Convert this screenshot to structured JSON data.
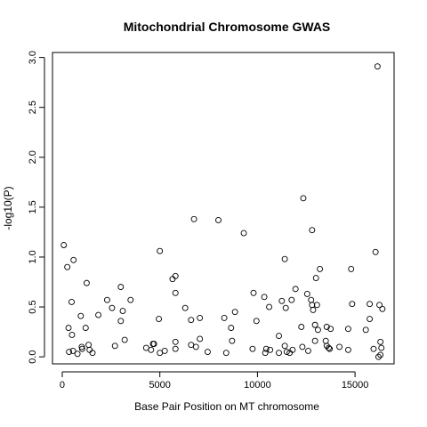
{
  "chart_data": {
    "type": "scatter",
    "title": "Mitochondrial Chromosome GWAS",
    "xlabel": "Base Pair Position on MT chromosome",
    "ylabel": "-log10(P)",
    "xlim": [
      -500,
      17000
    ],
    "ylim": [
      -0.07,
      3.05
    ],
    "x_ticks": [
      0,
      5000,
      10000,
      15000
    ],
    "x_tick_labels": [
      "0",
      "5000",
      "10000",
      "15000"
    ],
    "y_ticks": [
      0.0,
      0.5,
      1.0,
      1.5,
      2.0,
      2.5,
      3.0
    ],
    "y_tick_labels": [
      "0.0",
      "0.5",
      "1.0",
      "1.5",
      "2.0",
      "2.5",
      "3.0"
    ],
    "grid": false,
    "marker": "open-circle",
    "marker_color": "#000000",
    "points": [
      {
        "x": 80,
        "y": 1.12
      },
      {
        "x": 260,
        "y": 0.9
      },
      {
        "x": 320,
        "y": 0.29
      },
      {
        "x": 350,
        "y": 0.05
      },
      {
        "x": 480,
        "y": 0.55
      },
      {
        "x": 500,
        "y": 0.22
      },
      {
        "x": 550,
        "y": 0.06
      },
      {
        "x": 580,
        "y": 0.97
      },
      {
        "x": 780,
        "y": 0.03
      },
      {
        "x": 950,
        "y": 0.41
      },
      {
        "x": 1000,
        "y": 0.1
      },
      {
        "x": 1020,
        "y": 0.08
      },
      {
        "x": 1200,
        "y": 0.29
      },
      {
        "x": 1250,
        "y": 0.74
      },
      {
        "x": 1350,
        "y": 0.12
      },
      {
        "x": 1400,
        "y": 0.07
      },
      {
        "x": 1550,
        "y": 0.04
      },
      {
        "x": 1850,
        "y": 0.42
      },
      {
        "x": 2300,
        "y": 0.57
      },
      {
        "x": 2550,
        "y": 0.49
      },
      {
        "x": 2700,
        "y": 0.11
      },
      {
        "x": 3000,
        "y": 0.7
      },
      {
        "x": 3000,
        "y": 0.36
      },
      {
        "x": 3100,
        "y": 0.46
      },
      {
        "x": 3200,
        "y": 0.17
      },
      {
        "x": 3500,
        "y": 0.57
      },
      {
        "x": 4300,
        "y": 0.09
      },
      {
        "x": 4550,
        "y": 0.07
      },
      {
        "x": 4650,
        "y": 0.13
      },
      {
        "x": 4700,
        "y": 0.13
      },
      {
        "x": 4950,
        "y": 0.38
      },
      {
        "x": 5000,
        "y": 1.06
      },
      {
        "x": 5000,
        "y": 0.04
      },
      {
        "x": 5250,
        "y": 0.06
      },
      {
        "x": 5650,
        "y": 0.78
      },
      {
        "x": 5800,
        "y": 0.81
      },
      {
        "x": 5800,
        "y": 0.64
      },
      {
        "x": 5800,
        "y": 0.15
      },
      {
        "x": 5800,
        "y": 0.08
      },
      {
        "x": 6300,
        "y": 0.49
      },
      {
        "x": 6600,
        "y": 0.12
      },
      {
        "x": 6600,
        "y": 0.37
      },
      {
        "x": 6750,
        "y": 1.38
      },
      {
        "x": 6850,
        "y": 0.1
      },
      {
        "x": 7050,
        "y": 0.39
      },
      {
        "x": 7050,
        "y": 0.18
      },
      {
        "x": 7450,
        "y": 0.05
      },
      {
        "x": 8000,
        "y": 1.37
      },
      {
        "x": 8300,
        "y": 0.39
      },
      {
        "x": 8400,
        "y": 0.04
      },
      {
        "x": 8650,
        "y": 0.29
      },
      {
        "x": 8700,
        "y": 0.16
      },
      {
        "x": 8850,
        "y": 0.45
      },
      {
        "x": 9300,
        "y": 1.24
      },
      {
        "x": 9750,
        "y": 0.08
      },
      {
        "x": 9800,
        "y": 0.64
      },
      {
        "x": 9950,
        "y": 0.36
      },
      {
        "x": 10350,
        "y": 0.6
      },
      {
        "x": 10400,
        "y": 0.04
      },
      {
        "x": 10450,
        "y": 0.08
      },
      {
        "x": 10600,
        "y": 0.5
      },
      {
        "x": 10650,
        "y": 0.07
      },
      {
        "x": 11100,
        "y": 0.21
      },
      {
        "x": 11100,
        "y": 0.04
      },
      {
        "x": 11250,
        "y": 0.56
      },
      {
        "x": 11400,
        "y": 0.98
      },
      {
        "x": 11450,
        "y": 0.49
      },
      {
        "x": 11400,
        "y": 0.11
      },
      {
        "x": 11500,
        "y": 0.05
      },
      {
        "x": 11650,
        "y": 0.04
      },
      {
        "x": 11750,
        "y": 0.57
      },
      {
        "x": 11800,
        "y": 0.07
      },
      {
        "x": 11950,
        "y": 0.68
      },
      {
        "x": 12250,
        "y": 0.3
      },
      {
        "x": 12300,
        "y": 0.1
      },
      {
        "x": 12350,
        "y": 1.59
      },
      {
        "x": 12550,
        "y": 0.63
      },
      {
        "x": 12600,
        "y": 0.06
      },
      {
        "x": 12800,
        "y": 1.27
      },
      {
        "x": 12750,
        "y": 0.57
      },
      {
        "x": 12800,
        "y": 0.52
      },
      {
        "x": 12850,
        "y": 0.47
      },
      {
        "x": 12950,
        "y": 0.32
      },
      {
        "x": 12950,
        "y": 0.16
      },
      {
        "x": 13000,
        "y": 0.79
      },
      {
        "x": 13050,
        "y": 0.52
      },
      {
        "x": 13100,
        "y": 0.27
      },
      {
        "x": 13200,
        "y": 0.88
      },
      {
        "x": 13500,
        "y": 0.16
      },
      {
        "x": 13550,
        "y": 0.3
      },
      {
        "x": 13550,
        "y": 0.11
      },
      {
        "x": 13650,
        "y": 0.09
      },
      {
        "x": 13750,
        "y": 0.28
      },
      {
        "x": 13700,
        "y": 0.08
      },
      {
        "x": 14200,
        "y": 0.1
      },
      {
        "x": 14650,
        "y": 0.28
      },
      {
        "x": 14650,
        "y": 0.07
      },
      {
        "x": 14800,
        "y": 0.88
      },
      {
        "x": 14850,
        "y": 0.53
      },
      {
        "x": 15550,
        "y": 0.27
      },
      {
        "x": 15750,
        "y": 0.53
      },
      {
        "x": 15750,
        "y": 0.38
      },
      {
        "x": 15950,
        "y": 0.08
      },
      {
        "x": 16050,
        "y": 1.05
      },
      {
        "x": 16150,
        "y": 2.91
      },
      {
        "x": 16200,
        "y": 0.0
      },
      {
        "x": 16250,
        "y": 0.52
      },
      {
        "x": 16300,
        "y": 0.15
      },
      {
        "x": 16300,
        "y": 0.02
      },
      {
        "x": 16350,
        "y": 0.09
      },
      {
        "x": 16400,
        "y": 0.48
      }
    ]
  }
}
